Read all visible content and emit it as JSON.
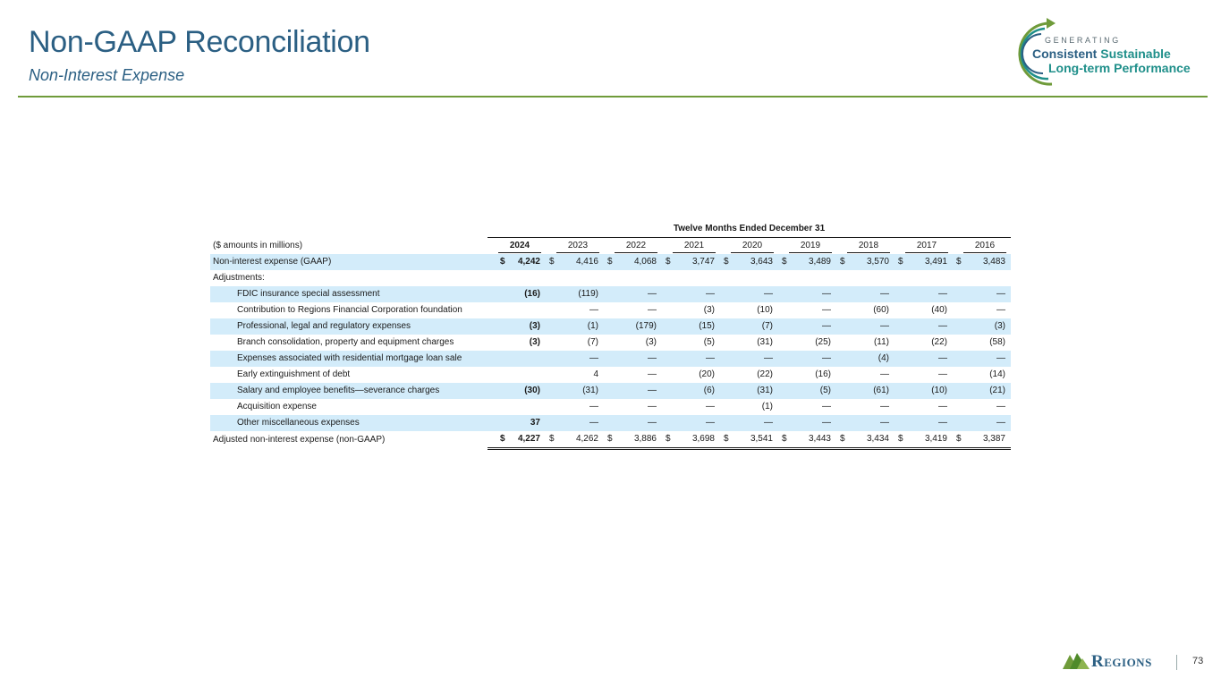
{
  "header": {
    "title": "Non-GAAP Reconciliation",
    "subtitle": "Non-Interest Expense"
  },
  "brand": {
    "tagline_small": "GENERATING",
    "tagline_word1": "Consistent",
    "tagline_word2": "Sustainable",
    "tagline_line2": "Long-term Performance",
    "logo_icon": "circular-arrow-icon",
    "colors": {
      "blue": "#2b5f83",
      "teal": "#1f8f8a",
      "green": "#6f9b3a",
      "highlight": "#d3ecfa"
    }
  },
  "table": {
    "group_header": "Twelve Months Ended December 31",
    "units_label": "($ amounts in millions)",
    "years": [
      "2024",
      "2023",
      "2022",
      "2021",
      "2020",
      "2019",
      "2018",
      "2017",
      "2016"
    ],
    "rows": [
      {
        "label": "Non-interest expense (GAAP)",
        "indent": false,
        "dollar": true,
        "values": [
          "4,242",
          "4,416",
          "4,068",
          "3,747",
          "3,643",
          "3,489",
          "3,570",
          "3,491",
          "3,483"
        ]
      },
      {
        "label": "Adjustments:",
        "indent": false,
        "dollar": false,
        "values": [
          "",
          "",
          "",
          "",
          "",
          "",
          "",
          "",
          ""
        ]
      },
      {
        "label": "FDIC insurance special assessment",
        "indent": true,
        "dollar": false,
        "values": [
          "(16)",
          "(119)",
          "—",
          "—",
          "—",
          "—",
          "—",
          "—",
          "—"
        ]
      },
      {
        "label": "Contribution to Regions Financial Corporation foundation",
        "indent": true,
        "dollar": false,
        "values": [
          "",
          "—",
          "—",
          "(3)",
          "(10)",
          "—",
          "(60)",
          "(40)",
          "—"
        ]
      },
      {
        "label": "Professional, legal and regulatory expenses",
        "indent": true,
        "dollar": false,
        "values": [
          "(3)",
          "(1)",
          "(179)",
          "(15)",
          "(7)",
          "—",
          "—",
          "—",
          "(3)"
        ]
      },
      {
        "label": "Branch consolidation, property and equipment charges",
        "indent": true,
        "dollar": false,
        "values": [
          "(3)",
          "(7)",
          "(3)",
          "(5)",
          "(31)",
          "(25)",
          "(11)",
          "(22)",
          "(58)"
        ]
      },
      {
        "label": "Expenses associated with residential mortgage loan sale",
        "indent": true,
        "dollar": false,
        "values": [
          "",
          "—",
          "—",
          "—",
          "—",
          "—",
          "(4)",
          "—",
          "—"
        ]
      },
      {
        "label": "Early extinguishment of debt",
        "indent": true,
        "dollar": false,
        "values": [
          "",
          "4",
          "—",
          "(20)",
          "(22)",
          "(16)",
          "—",
          "—",
          "(14)"
        ]
      },
      {
        "label": "Salary and employee benefits—severance charges",
        "indent": true,
        "dollar": false,
        "values": [
          "(30)",
          "(31)",
          "—",
          "(6)",
          "(31)",
          "(5)",
          "(61)",
          "(10)",
          "(21)"
        ]
      },
      {
        "label": "Acquisition expense",
        "indent": true,
        "dollar": false,
        "values": [
          "",
          "—",
          "—",
          "—",
          "(1)",
          "—",
          "—",
          "—",
          "—"
        ]
      },
      {
        "label": "Other miscellaneous expenses",
        "indent": true,
        "dollar": false,
        "values": [
          "37",
          "—",
          "—",
          "—",
          "—",
          "—",
          "—",
          "—",
          "—"
        ]
      },
      {
        "label": "Adjusted non-interest expense (non-GAAP)",
        "indent": false,
        "dollar": true,
        "total": true,
        "values": [
          "4,227",
          "4,262",
          "3,886",
          "3,698",
          "3,541",
          "3,443",
          "3,434",
          "3,419",
          "3,387"
        ]
      }
    ],
    "dollar_sign": "$"
  },
  "footer": {
    "company": "Regions",
    "logo_icon": "pyramid-logo-icon",
    "page_number": "73"
  }
}
